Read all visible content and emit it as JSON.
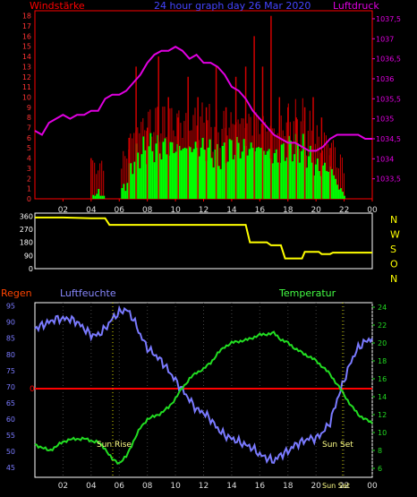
{
  "chart_data": [
    {
      "type": "line",
      "title": "24 hour graph day  26 Mar 2020",
      "left_label": "Windstärke",
      "right_label": "Luftdruck",
      "x_ticks": [
        "02",
        "04",
        "06",
        "08",
        "10",
        "12",
        "14",
        "16",
        "18",
        "20",
        "22",
        "00"
      ],
      "y_left_ticks": [
        0,
        1,
        2,
        3,
        4,
        5,
        6,
        7,
        8,
        9,
        10,
        11,
        12,
        13,
        14,
        15,
        16,
        17,
        18
      ],
      "y_right_ticks": [
        "1033,5",
        "1034",
        "1034,5",
        "1035",
        "1035,5",
        "1036",
        "1036,5",
        "1037",
        "1037,5"
      ],
      "ylim_left": [
        0,
        18.5
      ],
      "ylim_right": [
        1033,
        1037.7
      ],
      "colors": {
        "pressure": "#e000e0",
        "gust": "#d00000",
        "wind": "#00ff00",
        "frame": "#ff0000"
      },
      "pressure": [
        [
          0,
          1034.7
        ],
        [
          0.5,
          1034.6
        ],
        [
          1,
          1034.9
        ],
        [
          1.5,
          1035.0
        ],
        [
          2,
          1035.1
        ],
        [
          2.5,
          1035.0
        ],
        [
          3,
          1035.1
        ],
        [
          3.5,
          1035.1
        ],
        [
          4,
          1035.2
        ],
        [
          4.5,
          1035.2
        ],
        [
          5,
          1035.5
        ],
        [
          5.5,
          1035.6
        ],
        [
          6,
          1035.6
        ],
        [
          6.5,
          1035.7
        ],
        [
          7,
          1035.9
        ],
        [
          7.5,
          1036.1
        ],
        [
          8,
          1036.4
        ],
        [
          8.5,
          1036.6
        ],
        [
          9,
          1036.7
        ],
        [
          9.5,
          1036.7
        ],
        [
          10,
          1036.8
        ],
        [
          10.5,
          1036.7
        ],
        [
          11,
          1036.5
        ],
        [
          11.5,
          1036.6
        ],
        [
          12,
          1036.4
        ],
        [
          12.5,
          1036.4
        ],
        [
          13,
          1036.3
        ],
        [
          13.5,
          1036.1
        ],
        [
          14,
          1035.8
        ],
        [
          14.5,
          1035.7
        ],
        [
          15,
          1035.5
        ],
        [
          15.5,
          1035.2
        ],
        [
          16,
          1035.0
        ],
        [
          16.5,
          1034.8
        ],
        [
          17,
          1034.6
        ],
        [
          17.5,
          1034.5
        ],
        [
          18,
          1034.4
        ],
        [
          18.5,
          1034.4
        ],
        [
          19,
          1034.3
        ],
        [
          19.5,
          1034.2
        ],
        [
          20,
          1034.2
        ],
        [
          20.5,
          1034.3
        ],
        [
          21,
          1034.5
        ],
        [
          21.5,
          1034.6
        ],
        [
          22,
          1034.6
        ],
        [
          22.5,
          1034.6
        ],
        [
          23,
          1034.6
        ],
        [
          23.5,
          1034.5
        ],
        [
          24,
          1034.5
        ]
      ],
      "wind": [
        [
          0,
          0
        ],
        [
          4,
          0
        ],
        [
          4,
          0.5
        ],
        [
          5,
          0
        ],
        [
          6,
          0
        ],
        [
          6.5,
          2
        ],
        [
          7,
          4
        ],
        [
          8,
          5
        ],
        [
          9,
          5
        ],
        [
          10,
          5
        ],
        [
          11,
          5
        ],
        [
          12,
          5
        ],
        [
          13,
          4
        ],
        [
          14,
          5
        ],
        [
          15,
          5
        ],
        [
          16,
          5
        ],
        [
          17,
          4
        ],
        [
          18,
          5
        ],
        [
          19,
          5
        ],
        [
          20,
          3
        ],
        [
          21,
          3
        ],
        [
          21.6,
          1
        ],
        [
          22,
          0
        ],
        [
          24,
          0
        ]
      ],
      "gusts": [
        [
          4,
          4
        ],
        [
          6.7,
          6
        ],
        [
          7.2,
          13
        ],
        [
          8,
          7
        ],
        [
          8.8,
          14
        ],
        [
          9.5,
          10
        ],
        [
          10.2,
          8
        ],
        [
          10.9,
          12
        ],
        [
          11.6,
          10
        ],
        [
          12.2,
          9
        ],
        [
          12.9,
          13
        ],
        [
          13.6,
          9
        ],
        [
          14.3,
          12
        ],
        [
          15,
          13
        ],
        [
          15.6,
          16
        ],
        [
          16.2,
          13
        ],
        [
          16.8,
          18
        ],
        [
          17.4,
          10
        ],
        [
          18,
          9
        ],
        [
          18.6,
          8
        ],
        [
          19.2,
          9
        ],
        [
          19.8,
          10
        ],
        [
          20.4,
          8
        ],
        [
          21,
          5
        ]
      ]
    },
    {
      "type": "line",
      "title": "",
      "right_labels": [
        "N",
        "W",
        "S",
        "O",
        "N"
      ],
      "y_left_ticks": [
        0,
        90,
        180,
        270,
        360
      ],
      "ylim": [
        0,
        380
      ],
      "colors": {
        "direction": "#ffff00"
      },
      "direction": [
        [
          0,
          350
        ],
        [
          2,
          350
        ],
        [
          4,
          345
        ],
        [
          5,
          345
        ],
        [
          5.3,
          300
        ],
        [
          15,
          300
        ],
        [
          15.3,
          180
        ],
        [
          16.5,
          180
        ],
        [
          16.8,
          160
        ],
        [
          17.5,
          160
        ],
        [
          17.8,
          70
        ],
        [
          19,
          70
        ],
        [
          19.2,
          115
        ],
        [
          20.2,
          115
        ],
        [
          20.4,
          100
        ],
        [
          21,
          100
        ],
        [
          21.2,
          110
        ],
        [
          24,
          110
        ]
      ]
    },
    {
      "type": "line",
      "title": "",
      "left_label": "Regen",
      "series_labels": {
        "humidity": "Luftfeuchte",
        "temperature": "Temperatur"
      },
      "y_left_ticks": [
        45,
        50,
        55,
        60,
        65,
        70,
        75,
        80,
        85,
        90,
        95
      ],
      "y_right_ticks": [
        6,
        8,
        10,
        12,
        14,
        16,
        18,
        20,
        22,
        24
      ],
      "rain_axis_label": "0",
      "ylim_left": [
        42,
        96
      ],
      "ylim_right": [
        5,
        24.5
      ],
      "annotations": {
        "sunrise": "Sun Rise",
        "sunset": "Sun Set",
        "sunset_small": "Sun Set"
      },
      "colors": {
        "humidity": "#7a7aff",
        "temperature": "#22dd22",
        "rain": "#ff0000",
        "rain_label": "#ff4400",
        "humidity_label": "#8888ff",
        "temperature_label": "#44ff44"
      },
      "humidity": [
        [
          0,
          88
        ],
        [
          0.5,
          89
        ],
        [
          1,
          90
        ],
        [
          1.5,
          91
        ],
        [
          2,
          91
        ],
        [
          2.5,
          91
        ],
        [
          3,
          90
        ],
        [
          3.5,
          88
        ],
        [
          4,
          86
        ],
        [
          4.5,
          86
        ],
        [
          5,
          88
        ],
        [
          5.5,
          91
        ],
        [
          6,
          93
        ],
        [
          6.5,
          94
        ],
        [
          7,
          91
        ],
        [
          7.5,
          86
        ],
        [
          8,
          82
        ],
        [
          8.5,
          80
        ],
        [
          9,
          78
        ],
        [
          9.5,
          75
        ],
        [
          10,
          72
        ],
        [
          10.5,
          69
        ],
        [
          11,
          66
        ],
        [
          11.5,
          63
        ],
        [
          12,
          62
        ],
        [
          12.5,
          60
        ],
        [
          13,
          57
        ],
        [
          13.5,
          55
        ],
        [
          14,
          54
        ],
        [
          14.5,
          53
        ],
        [
          15,
          52
        ],
        [
          15.5,
          51
        ],
        [
          16,
          49
        ],
        [
          16.5,
          48
        ],
        [
          17,
          47
        ],
        [
          17.5,
          49
        ],
        [
          18,
          50
        ],
        [
          18.5,
          52
        ],
        [
          19,
          53
        ],
        [
          19.5,
          54
        ],
        [
          20,
          54
        ],
        [
          20.5,
          56
        ],
        [
          21,
          59
        ],
        [
          21.5,
          66
        ],
        [
          22,
          72
        ],
        [
          22.5,
          78
        ],
        [
          23,
          82
        ],
        [
          23.5,
          84
        ],
        [
          24,
          85
        ]
      ],
      "temperature": [
        [
          0,
          8.7
        ],
        [
          0.5,
          8.3
        ],
        [
          1,
          8.0
        ],
        [
          1.5,
          8.4
        ],
        [
          2,
          9.0
        ],
        [
          2.5,
          9.2
        ],
        [
          3,
          9.3
        ],
        [
          3.5,
          9.3
        ],
        [
          4,
          9.1
        ],
        [
          4.5,
          8.9
        ],
        [
          5,
          8.2
        ],
        [
          5.5,
          7.0
        ],
        [
          6,
          6.6
        ],
        [
          6.5,
          7.3
        ],
        [
          7,
          9.0
        ],
        [
          7.5,
          10.5
        ],
        [
          8,
          11.5
        ],
        [
          8.5,
          11.8
        ],
        [
          9,
          12.2
        ],
        [
          9.5,
          12.8
        ],
        [
          10,
          13.8
        ],
        [
          10.5,
          15.0
        ],
        [
          11,
          16.0
        ],
        [
          11.5,
          16.7
        ],
        [
          12,
          17.1
        ],
        [
          12.5,
          17.8
        ],
        [
          13,
          18.8
        ],
        [
          13.5,
          19.6
        ],
        [
          14,
          20.0
        ],
        [
          14.5,
          20.2
        ],
        [
          15,
          20.3
        ],
        [
          15.5,
          20.6
        ],
        [
          16,
          20.9
        ],
        [
          16.5,
          21.0
        ],
        [
          17,
          21.1
        ],
        [
          17.5,
          20.4
        ],
        [
          18,
          20.0
        ],
        [
          18.5,
          19.4
        ],
        [
          19,
          18.9
        ],
        [
          19.5,
          18.5
        ],
        [
          20,
          18.0
        ],
        [
          20.5,
          17.3
        ],
        [
          21,
          16.5
        ],
        [
          21.5,
          15.4
        ],
        [
          22,
          14.2
        ],
        [
          22.5,
          13.0
        ],
        [
          23,
          12.0
        ],
        [
          23.5,
          11.5
        ],
        [
          24,
          11.0
        ]
      ]
    }
  ]
}
